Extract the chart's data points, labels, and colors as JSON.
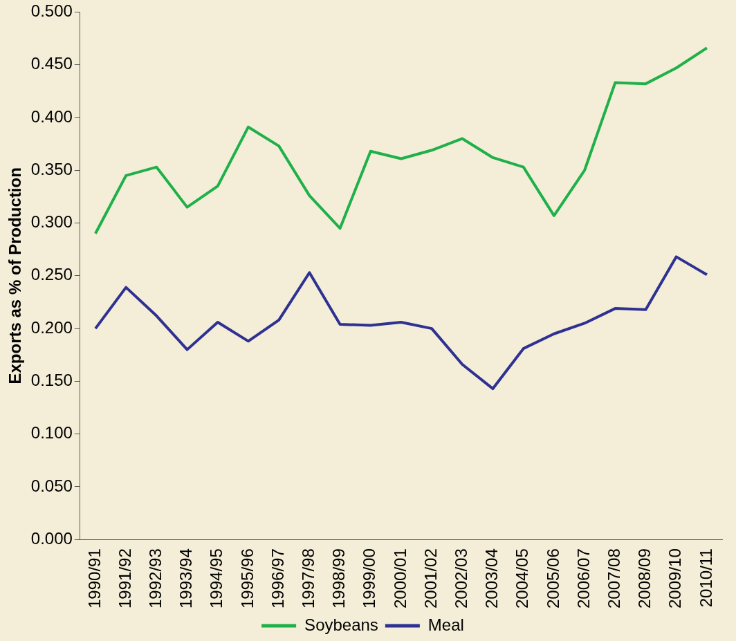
{
  "chart_data": {
    "type": "line",
    "ylabel": "Exports as % of Production",
    "categories": [
      "1990/91",
      "1991/92",
      "1992/93",
      "1993/94",
      "1994/95",
      "1995/96",
      "1996/97",
      "1997/98",
      "1998/99",
      "1999/00",
      "2000/01",
      "2001/02",
      "2002/03",
      "2003/04",
      "2004/05",
      "2005/06",
      "2006/07",
      "2007/08",
      "2008/09",
      "2009/10",
      "2010/11"
    ],
    "series": [
      {
        "name": "Soybeans",
        "color": "#1fb04a",
        "values": [
          0.29,
          0.345,
          0.353,
          0.315,
          0.335,
          0.391,
          0.373,
          0.326,
          0.295,
          0.368,
          0.361,
          0.369,
          0.38,
          0.362,
          0.353,
          0.307,
          0.35,
          0.433,
          0.432,
          0.447,
          0.466
        ]
      },
      {
        "name": "Meal",
        "color": "#2e3192",
        "values": [
          0.2,
          0.239,
          0.212,
          0.18,
          0.206,
          0.188,
          0.208,
          0.253,
          0.204,
          0.203,
          0.206,
          0.2,
          0.166,
          0.143,
          0.181,
          0.195,
          0.205,
          0.219,
          0.218,
          0.268,
          0.251
        ]
      }
    ],
    "ylim": [
      0,
      0.5
    ],
    "yticks": [
      {
        "value": 0,
        "label": "0.000"
      },
      {
        "value": 0.05,
        "label": "0.050"
      },
      {
        "value": 0.1,
        "label": "0.100"
      },
      {
        "value": 0.15,
        "label": "0.150"
      },
      {
        "value": 0.2,
        "label": "0.200"
      },
      {
        "value": 0.25,
        "label": "0.250"
      },
      {
        "value": 0.3,
        "label": "0.300"
      },
      {
        "value": 0.35,
        "label": "0.350"
      },
      {
        "value": 0.4,
        "label": "0.400"
      },
      {
        "value": 0.45,
        "label": "0.450"
      },
      {
        "value": 0.5,
        "label": "0.500"
      }
    ],
    "grid": false,
    "legend": "bottom",
    "marker": "none",
    "line_style": "solid"
  }
}
